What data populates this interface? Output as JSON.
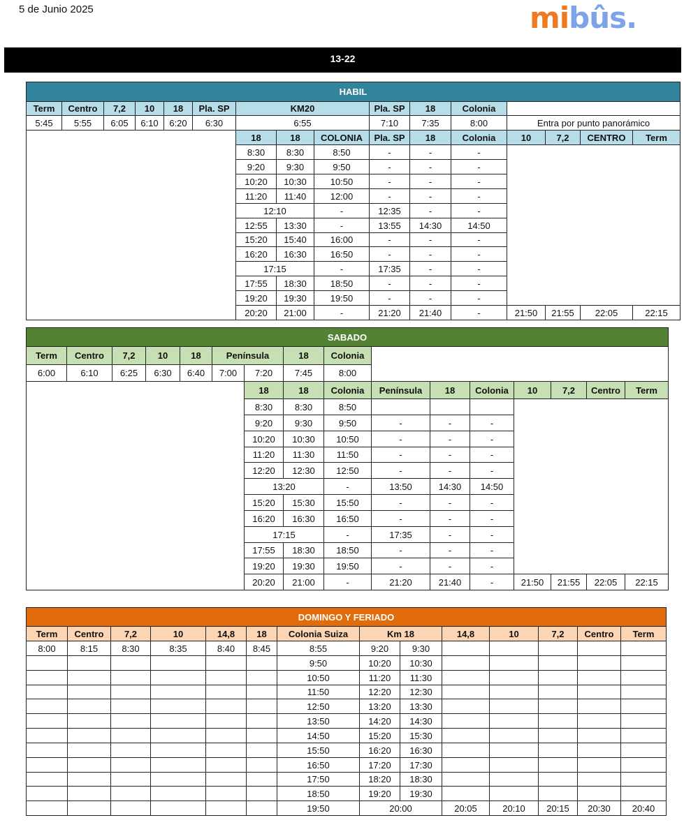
{
  "date": "5 de Junio 2025",
  "logo": {
    "text": "mibus.",
    "colors": {
      "mi": "#ef7a22",
      "bus": "#7fa3e8"
    }
  },
  "route": "13-22",
  "habil": {
    "title": "HABIL",
    "colors": {
      "title": "#31849b",
      "header": "#b7dde8"
    },
    "header1": [
      "Term",
      "Centro",
      "7,2",
      "10",
      "18",
      "Pla. SP",
      "KM20",
      "Pla. SP",
      "18",
      "Colonia",
      ""
    ],
    "row1": [
      "5:45",
      "5:55",
      "6:05",
      "6:10",
      "6:20",
      "6:30",
      "6:55",
      "7:10",
      "7:35",
      "8:00",
      "Entra por punto panorámico"
    ],
    "header2": [
      "18",
      "18",
      "COLONIA",
      "Pla. SP",
      "18",
      "Colonia",
      "10",
      "7,2",
      "CENTRO",
      "Term"
    ],
    "rows": [
      [
        "8:30",
        "8:30",
        "8:50",
        "-",
        "-",
        "-"
      ],
      [
        "9:20",
        "9:30",
        "9:50",
        "-",
        "-",
        "-"
      ],
      [
        "10:20",
        "10:30",
        "10:50",
        "-",
        "-",
        "-"
      ],
      [
        "11:20",
        "11:40",
        "12:00",
        "-",
        "-",
        "-"
      ],
      [
        {
          "v": "12:10",
          "span": 2
        },
        "-",
        "12:35",
        "-",
        "-"
      ],
      [
        "12:55",
        "13:30",
        "-",
        "13:55",
        "14:30",
        "14:50"
      ],
      [
        "15:20",
        "15:40",
        "16:00",
        "-",
        "-",
        "-"
      ],
      [
        "16:20",
        "16:30",
        "16:50",
        "-",
        "-",
        "-"
      ],
      [
        {
          "v": "17:15",
          "span": 2
        },
        "-",
        "17:35",
        "-",
        "-"
      ],
      [
        "17:55",
        "18:30",
        "18:50",
        "-",
        "-",
        "-"
      ],
      [
        "19:20",
        "19:30",
        "19:50",
        "-",
        "-",
        "-"
      ],
      [
        "20:20",
        "21:00",
        "-",
        "21:20",
        "21:40",
        "-",
        "21:50",
        "21:55",
        "22:05",
        "22:15"
      ]
    ]
  },
  "sabado": {
    "title": "SABADO",
    "colors": {
      "title": "#548235",
      "header": "#c6e0b4"
    },
    "header1": [
      "Term",
      "Centro",
      "7,2",
      "10",
      "18",
      {
        "v": "Península",
        "span": 2
      },
      "18",
      "Colonia"
    ],
    "row1": [
      "6:00",
      "6:10",
      "6:25",
      "6:30",
      "6:40",
      "7:00",
      "7:20",
      "7:45",
      "8:00"
    ],
    "header2": [
      "18",
      "18",
      "Colonia",
      "Península",
      "18",
      "Colonia",
      "10",
      "7,2",
      "Centro",
      "Term"
    ],
    "rows": [
      [
        "8:30",
        "8:30",
        "8:50",
        "",
        "",
        ""
      ],
      [
        "9:20",
        "9:30",
        "9:50",
        "-",
        "-",
        "-"
      ],
      [
        "10:20",
        "10:30",
        "10:50",
        "-",
        "-",
        "-"
      ],
      [
        "11:20",
        "11:30",
        "11:50",
        "-",
        "-",
        "-"
      ],
      [
        "12:20",
        "12:30",
        "12:50",
        "-",
        "-",
        "-"
      ],
      [
        {
          "v": "13:20",
          "span": 2
        },
        "-",
        "13:50",
        "14:30",
        "14:50"
      ],
      [
        "15:20",
        "15:30",
        "15:50",
        "-",
        "-",
        "-"
      ],
      [
        "16:20",
        "16:30",
        "16:50",
        "-",
        "-",
        "-"
      ],
      [
        {
          "v": "17:15",
          "span": 2
        },
        "-",
        "17:35",
        "-",
        "-"
      ],
      [
        "17:55",
        "18:30",
        "18:50",
        "-",
        "-",
        "-"
      ],
      [
        "19:20",
        "19:30",
        "19:50",
        "-",
        "-",
        "-"
      ],
      [
        "20:20",
        "21:00",
        "-",
        "21:20",
        "21:40",
        "-",
        "21:50",
        "21:55",
        "22:05",
        "22:15"
      ]
    ]
  },
  "domingo": {
    "title": "DOMINGO Y FERIADO",
    "colors": {
      "title": "#e26b0a",
      "header": "#fcd5b4"
    },
    "header": [
      "Term",
      "Centro",
      "7,2",
      "10",
      "14,8",
      "18",
      "Colonia Suiza",
      {
        "v": "Km 18",
        "span": 2
      },
      "14,8",
      "10",
      "7,2",
      "Centro",
      "Term"
    ],
    "rows": [
      [
        "8:00",
        "8:15",
        "8:30",
        "8:35",
        "8:40",
        "8:45",
        "8:55",
        "9:20",
        "9:30",
        "",
        "",
        "",
        "",
        ""
      ],
      [
        "",
        "",
        "",
        "",
        "",
        "",
        "9:50",
        "10:20",
        "10:30",
        "",
        "",
        "",
        "",
        ""
      ],
      [
        "",
        "",
        "",
        "",
        "",
        "",
        "10:50",
        "11:20",
        "11:30",
        "",
        "",
        "",
        "",
        ""
      ],
      [
        "",
        "",
        "",
        "",
        "",
        "",
        "11:50",
        "12:20",
        "12:30",
        "",
        "",
        "",
        "",
        ""
      ],
      [
        "",
        "",
        "",
        "",
        "",
        "",
        "12:50",
        "13:20",
        "13:30",
        "",
        "",
        "",
        "",
        ""
      ],
      [
        "",
        "",
        "",
        "",
        "",
        "",
        "13:50",
        "14:20",
        "14:30",
        "",
        "",
        "",
        "",
        ""
      ],
      [
        "",
        "",
        "",
        "",
        "",
        "",
        "14:50",
        "15:20",
        "15:30",
        "",
        "",
        "",
        "",
        ""
      ],
      [
        "",
        "",
        "",
        "",
        "",
        "",
        "15:50",
        "16:20",
        "16:30",
        "",
        "",
        "",
        "",
        ""
      ],
      [
        "",
        "",
        "",
        "",
        "",
        "",
        "16:50",
        "17:20",
        "17:30",
        "",
        "",
        "",
        "",
        ""
      ],
      [
        "",
        "",
        "",
        "",
        "",
        "",
        "17:50",
        "18:20",
        "18:30",
        "",
        "",
        "",
        "",
        ""
      ],
      [
        "",
        "",
        "",
        "",
        "",
        "",
        "18:50",
        "19:20",
        "19:30",
        "",
        "",
        "",
        "",
        ""
      ],
      [
        "",
        "",
        "",
        "",
        "",
        "",
        "19:50",
        {
          "v": "20:00",
          "span": 2
        },
        "20:05",
        "20:10",
        "20:15",
        "20:30",
        "20:40"
      ]
    ]
  }
}
